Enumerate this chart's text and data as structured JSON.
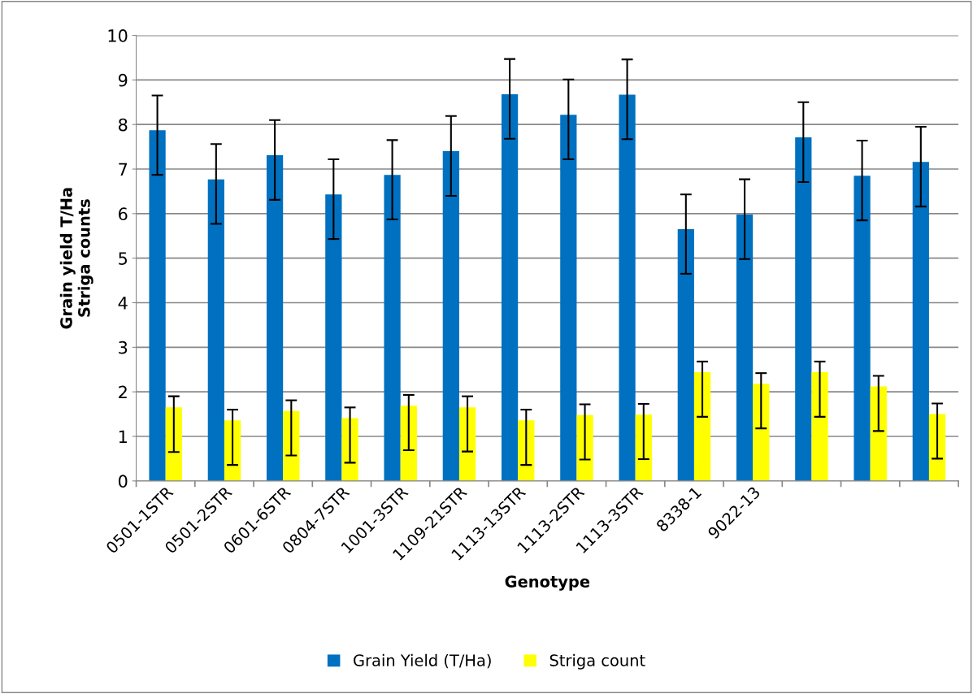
{
  "chart_data": {
    "type": "bar",
    "xlabel": "Genotype",
    "ylabel": "Grain yield T/Ha\nStriga counts",
    "categories": [
      "0501-1STR",
      "0501-2STR",
      "0601-6STR",
      "0804-7STR",
      "1001-3STR",
      "1109-21STR",
      "1113-13STR",
      "1113-2STR",
      "1113-3STR",
      "8338-1",
      "9022-13",
      null,
      null,
      null
    ],
    "series": [
      {
        "name": "Grain Yield (T/Ha)",
        "color": "#0070c0",
        "values": [
          7.87,
          6.77,
          7.31,
          6.43,
          6.87,
          7.4,
          8.68,
          8.22,
          8.67,
          5.65,
          5.98,
          7.71,
          6.85,
          7.16
        ],
        "errors": [
          [
            6.87,
            8.65
          ],
          [
            5.77,
            7.56
          ],
          [
            6.31,
            8.1
          ],
          [
            5.43,
            7.22
          ],
          [
            5.87,
            7.65
          ],
          [
            6.4,
            8.19
          ],
          [
            7.68,
            9.47
          ],
          [
            7.22,
            9.01
          ],
          [
            7.67,
            9.46
          ],
          [
            4.65,
            6.43
          ],
          [
            4.98,
            6.77
          ],
          [
            6.71,
            8.5
          ],
          [
            5.85,
            7.64
          ],
          [
            6.16,
            7.95
          ]
        ]
      },
      {
        "name": "Striga count",
        "color": "#ffff00",
        "values": [
          1.65,
          1.36,
          1.57,
          1.41,
          1.69,
          1.65,
          1.36,
          1.48,
          1.49,
          2.44,
          2.18,
          2.44,
          2.12,
          1.5
        ],
        "errors": [
          [
            0.65,
            1.9
          ],
          [
            0.36,
            1.6
          ],
          [
            0.57,
            1.81
          ],
          [
            0.41,
            1.65
          ],
          [
            0.69,
            1.93
          ],
          [
            0.66,
            1.9
          ],
          [
            0.36,
            1.6
          ],
          [
            0.48,
            1.72
          ],
          [
            0.49,
            1.73
          ],
          [
            1.44,
            2.68
          ],
          [
            1.18,
            2.42
          ],
          [
            1.44,
            2.68
          ],
          [
            1.12,
            2.36
          ],
          [
            0.5,
            1.74
          ]
        ]
      }
    ],
    "ylim": [
      0,
      10
    ],
    "yticks": [
      0,
      1,
      2,
      3,
      4,
      5,
      6,
      7,
      8,
      9,
      10
    ],
    "grid": "y",
    "legend": "bottom"
  }
}
